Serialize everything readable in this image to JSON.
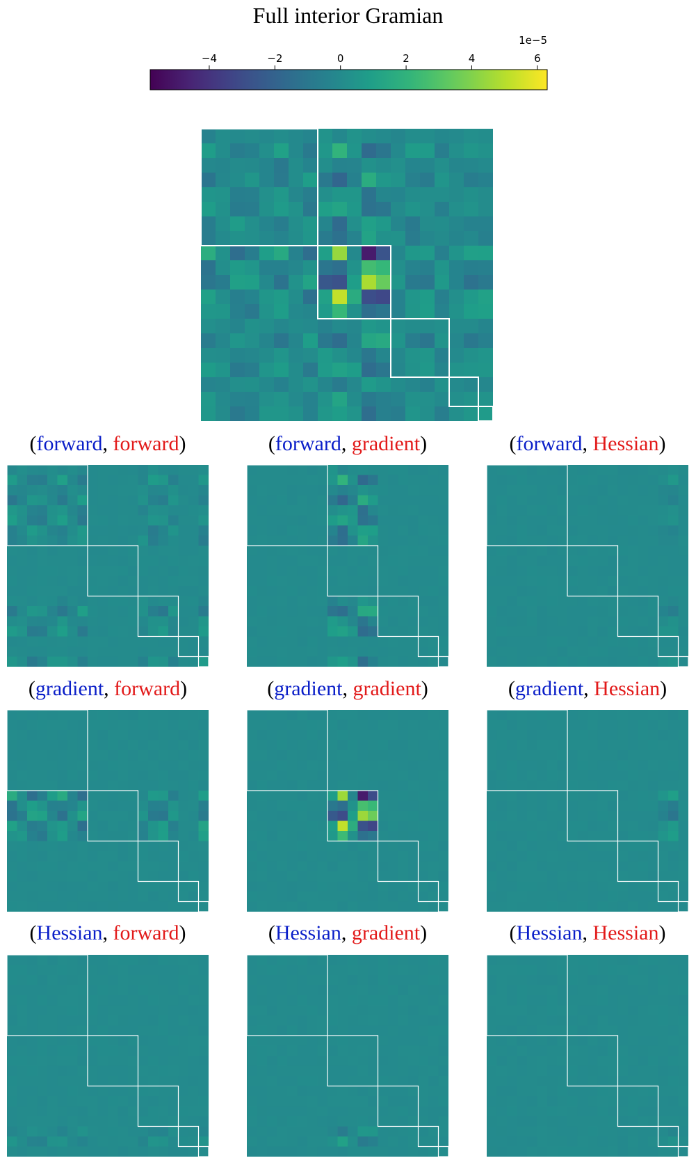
{
  "chart_data": {
    "type": "heatmap",
    "title": "Full interior Gramian",
    "colorbar": {
      "min": -5.8,
      "max": 6.3,
      "ticks": [
        "−4",
        "−2",
        "0",
        "2",
        "4",
        "6"
      ],
      "tick_values": [
        -4,
        -2,
        0,
        2,
        4,
        6
      ],
      "exponent": "1e−5",
      "colormap": "viridis"
    },
    "block_sizes": [
      8,
      5,
      4,
      2,
      1
    ],
    "grid_size": 20,
    "panels": [
      {
        "row_label": "forward",
        "col_label": "forward"
      },
      {
        "row_label": "forward",
        "col_label": "gradient"
      },
      {
        "row_label": "forward",
        "col_label": "Hessian"
      },
      {
        "row_label": "gradient",
        "col_label": "forward"
      },
      {
        "row_label": "gradient",
        "col_label": "gradient"
      },
      {
        "row_label": "gradient",
        "col_label": "Hessian"
      },
      {
        "row_label": "Hessian",
        "col_label": "forward"
      },
      {
        "row_label": "Hessian",
        "col_label": "gradient"
      },
      {
        "row_label": "Hessian",
        "col_label": "Hessian"
      }
    ]
  },
  "punct": {
    "open": "(",
    "comma": ", ",
    "close": ")"
  },
  "colors": {
    "row_label": "#0a1ec8",
    "col_label": "#e21a1a",
    "block_lines": "#ffffff"
  }
}
